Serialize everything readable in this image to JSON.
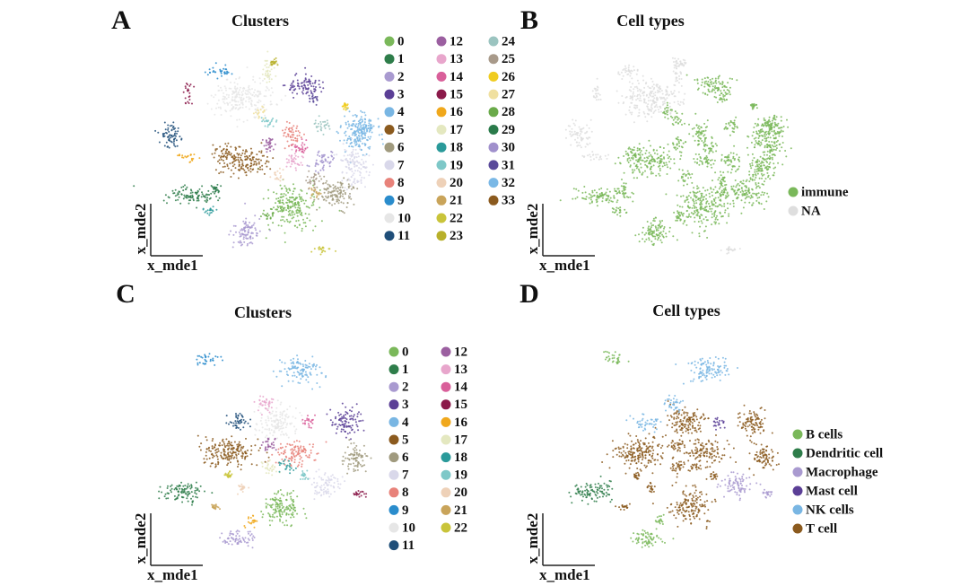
{
  "panels": [
    {
      "letter": "A",
      "title": "Clusters",
      "x_label": "x_mde1",
      "y_label": "x_mde2",
      "legend": [
        {
          "label": "0",
          "color": "#7ab85a"
        },
        {
          "label": "1",
          "color": "#2e7d4a"
        },
        {
          "label": "2",
          "color": "#a99ad0"
        },
        {
          "label": "3",
          "color": "#5b3f96"
        },
        {
          "label": "4",
          "color": "#79b6e3"
        },
        {
          "label": "5",
          "color": "#8b5a1e"
        },
        {
          "label": "6",
          "color": "#a09a7e"
        },
        {
          "label": "7",
          "color": "#d9d8ea"
        },
        {
          "label": "8",
          "color": "#e8827a"
        },
        {
          "label": "9",
          "color": "#2a8ccc"
        },
        {
          "label": "10",
          "color": "#e6e6e6"
        },
        {
          "label": "11",
          "color": "#1f4e79"
        },
        {
          "label": "12",
          "color": "#9b5fa0"
        },
        {
          "label": "13",
          "color": "#e8a6cc"
        },
        {
          "label": "14",
          "color": "#d95f9a"
        },
        {
          "label": "15",
          "color": "#8b1a4a"
        },
        {
          "label": "16",
          "color": "#f0a81c"
        },
        {
          "label": "17",
          "color": "#e4e8c0"
        },
        {
          "label": "18",
          "color": "#2a9a9a"
        },
        {
          "label": "19",
          "color": "#7ec8c8"
        },
        {
          "label": "20",
          "color": "#eed1b8"
        },
        {
          "label": "21",
          "color": "#c9a45a"
        },
        {
          "label": "22",
          "color": "#c9c43a"
        },
        {
          "label": "23",
          "color": "#b8b02a"
        },
        {
          "label": "24",
          "color": "#9bc4c0"
        },
        {
          "label": "25",
          "color": "#a89a8a"
        },
        {
          "label": "26",
          "color": "#f0cc20"
        },
        {
          "label": "27",
          "color": "#f0e0a0"
        },
        {
          "label": "28",
          "color": "#6aaa4a"
        },
        {
          "label": "29",
          "color": "#2a7a4a"
        },
        {
          "label": "30",
          "color": "#a090cc"
        },
        {
          "label": "31",
          "color": "#5a4a9a"
        },
        {
          "label": "32",
          "color": "#7ab8e6"
        },
        {
          "label": "33",
          "color": "#8b5a1e"
        }
      ]
    },
    {
      "letter": "B",
      "title": "Cell types",
      "x_label": "x_mde1",
      "y_label": "x_mde2",
      "legend": [
        {
          "label": "immune",
          "color": "#7ab85a"
        },
        {
          "label": "NA",
          "color": "#dedede"
        }
      ]
    },
    {
      "letter": "C",
      "title": "Clusters",
      "x_label": "x_mde1",
      "y_label": "x_mde2",
      "legend": [
        {
          "label": "0",
          "color": "#7ab85a"
        },
        {
          "label": "1",
          "color": "#2e7d4a"
        },
        {
          "label": "2",
          "color": "#a99ad0"
        },
        {
          "label": "3",
          "color": "#5b3f96"
        },
        {
          "label": "4",
          "color": "#79b6e3"
        },
        {
          "label": "5",
          "color": "#8b5a1e"
        },
        {
          "label": "6",
          "color": "#a09a7e"
        },
        {
          "label": "7",
          "color": "#d9d8ea"
        },
        {
          "label": "8",
          "color": "#e8827a"
        },
        {
          "label": "9",
          "color": "#2a8ccc"
        },
        {
          "label": "10",
          "color": "#e6e6e6"
        },
        {
          "label": "11",
          "color": "#1f4e79"
        },
        {
          "label": "12",
          "color": "#9b5fa0"
        },
        {
          "label": "13",
          "color": "#e8a6cc"
        },
        {
          "label": "14",
          "color": "#d95f9a"
        },
        {
          "label": "15",
          "color": "#8b1a4a"
        },
        {
          "label": "16",
          "color": "#f0a81c"
        },
        {
          "label": "17",
          "color": "#e4e8c0"
        },
        {
          "label": "18",
          "color": "#2a9a9a"
        },
        {
          "label": "19",
          "color": "#7ec8c8"
        },
        {
          "label": "20",
          "color": "#eed1b8"
        },
        {
          "label": "21",
          "color": "#c9a45a"
        },
        {
          "label": "22",
          "color": "#c9c43a"
        }
      ]
    },
    {
      "letter": "D",
      "title": "Cell types",
      "x_label": "x_mde1",
      "y_label": "x_mde2",
      "legend": [
        {
          "label": "B cells",
          "color": "#7ab85a"
        },
        {
          "label": "Dendritic cell",
          "color": "#2e7d4a"
        },
        {
          "label": "Macrophage",
          "color": "#a99ad0"
        },
        {
          "label": "Mast cell",
          "color": "#5b3f96"
        },
        {
          "label": "NK cells",
          "color": "#79b6e3"
        },
        {
          "label": "T cell",
          "color": "#8b5a1e"
        }
      ]
    }
  ]
}
